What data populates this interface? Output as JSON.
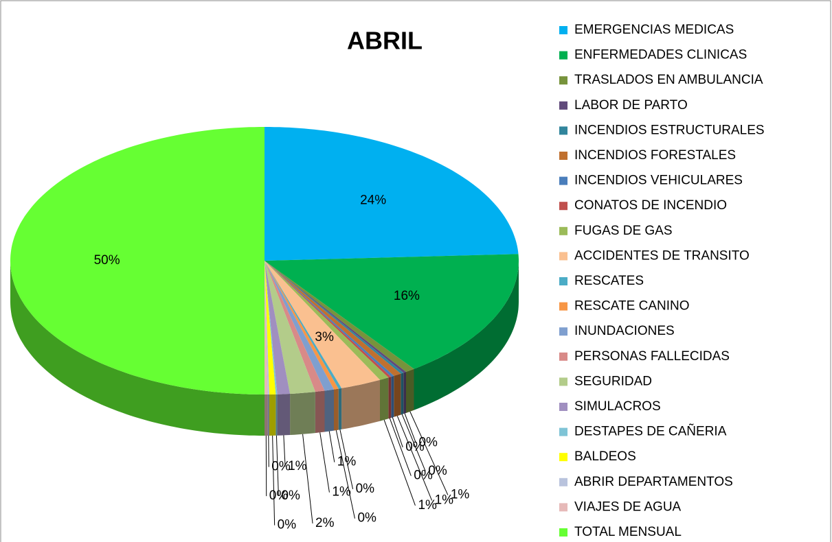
{
  "chart_data": {
    "type": "pie",
    "title": "ABRIL",
    "categories": [
      "EMERGENCIAS MEDICAS",
      "ENFERMEDADES CLINICAS",
      "TRASLADOS EN AMBULANCIA",
      "LABOR DE PARTO",
      "INCENDIOS ESTRUCTURALES",
      "INCENDIOS FORESTALES",
      "INCENDIOS VEHICULARES",
      "CONATOS DE INCENDIO",
      "FUGAS DE GAS",
      "ACCIDENTES DE TRANSITO",
      "RESCATES",
      "RESCATE CANINO",
      "INUNDACIONES",
      "PERSONAS FALLECIDAS",
      "SEGURIDAD",
      "SIMULACROS",
      "DESTAPES DE CAÑERIA",
      "BALDEOS",
      "ABRIR DEPARTAMENTOS",
      "VIAJES DE AGUA",
      "TOTAL MENSUAL"
    ],
    "values": [
      24.2,
      15.8,
      0.6,
      0.2,
      0.2,
      0.5,
      0.2,
      0.2,
      0.6,
      2.6,
      0.2,
      0.3,
      0.6,
      0.6,
      1.6,
      0.8,
      0.1,
      0.4,
      0.1,
      0.2,
      50
    ],
    "value_labels": [
      "24%",
      "16%",
      "1%",
      "0%",
      "0%",
      "1%",
      "0%",
      "0%",
      "1%",
      "3%",
      "0%",
      "0%",
      "1%",
      "1%",
      "2%",
      "1%",
      "0%",
      "0%",
      "0%",
      "0%",
      "50%"
    ],
    "colors": [
      "#00b0f0",
      "#00b050",
      "#77933c",
      "#604a7b",
      "#31859c",
      "#c0702f",
      "#4a7ebb",
      "#c0504d",
      "#9bbb59",
      "#fac090",
      "#4bacc6",
      "#f79646",
      "#7f9fcf",
      "#d88a88",
      "#b3cc8a",
      "#a08fc0",
      "#7fc4d6",
      "#ffff00",
      "#b9c3dd",
      "#e6b9b8",
      "#66ff33"
    ],
    "legend": "right"
  }
}
